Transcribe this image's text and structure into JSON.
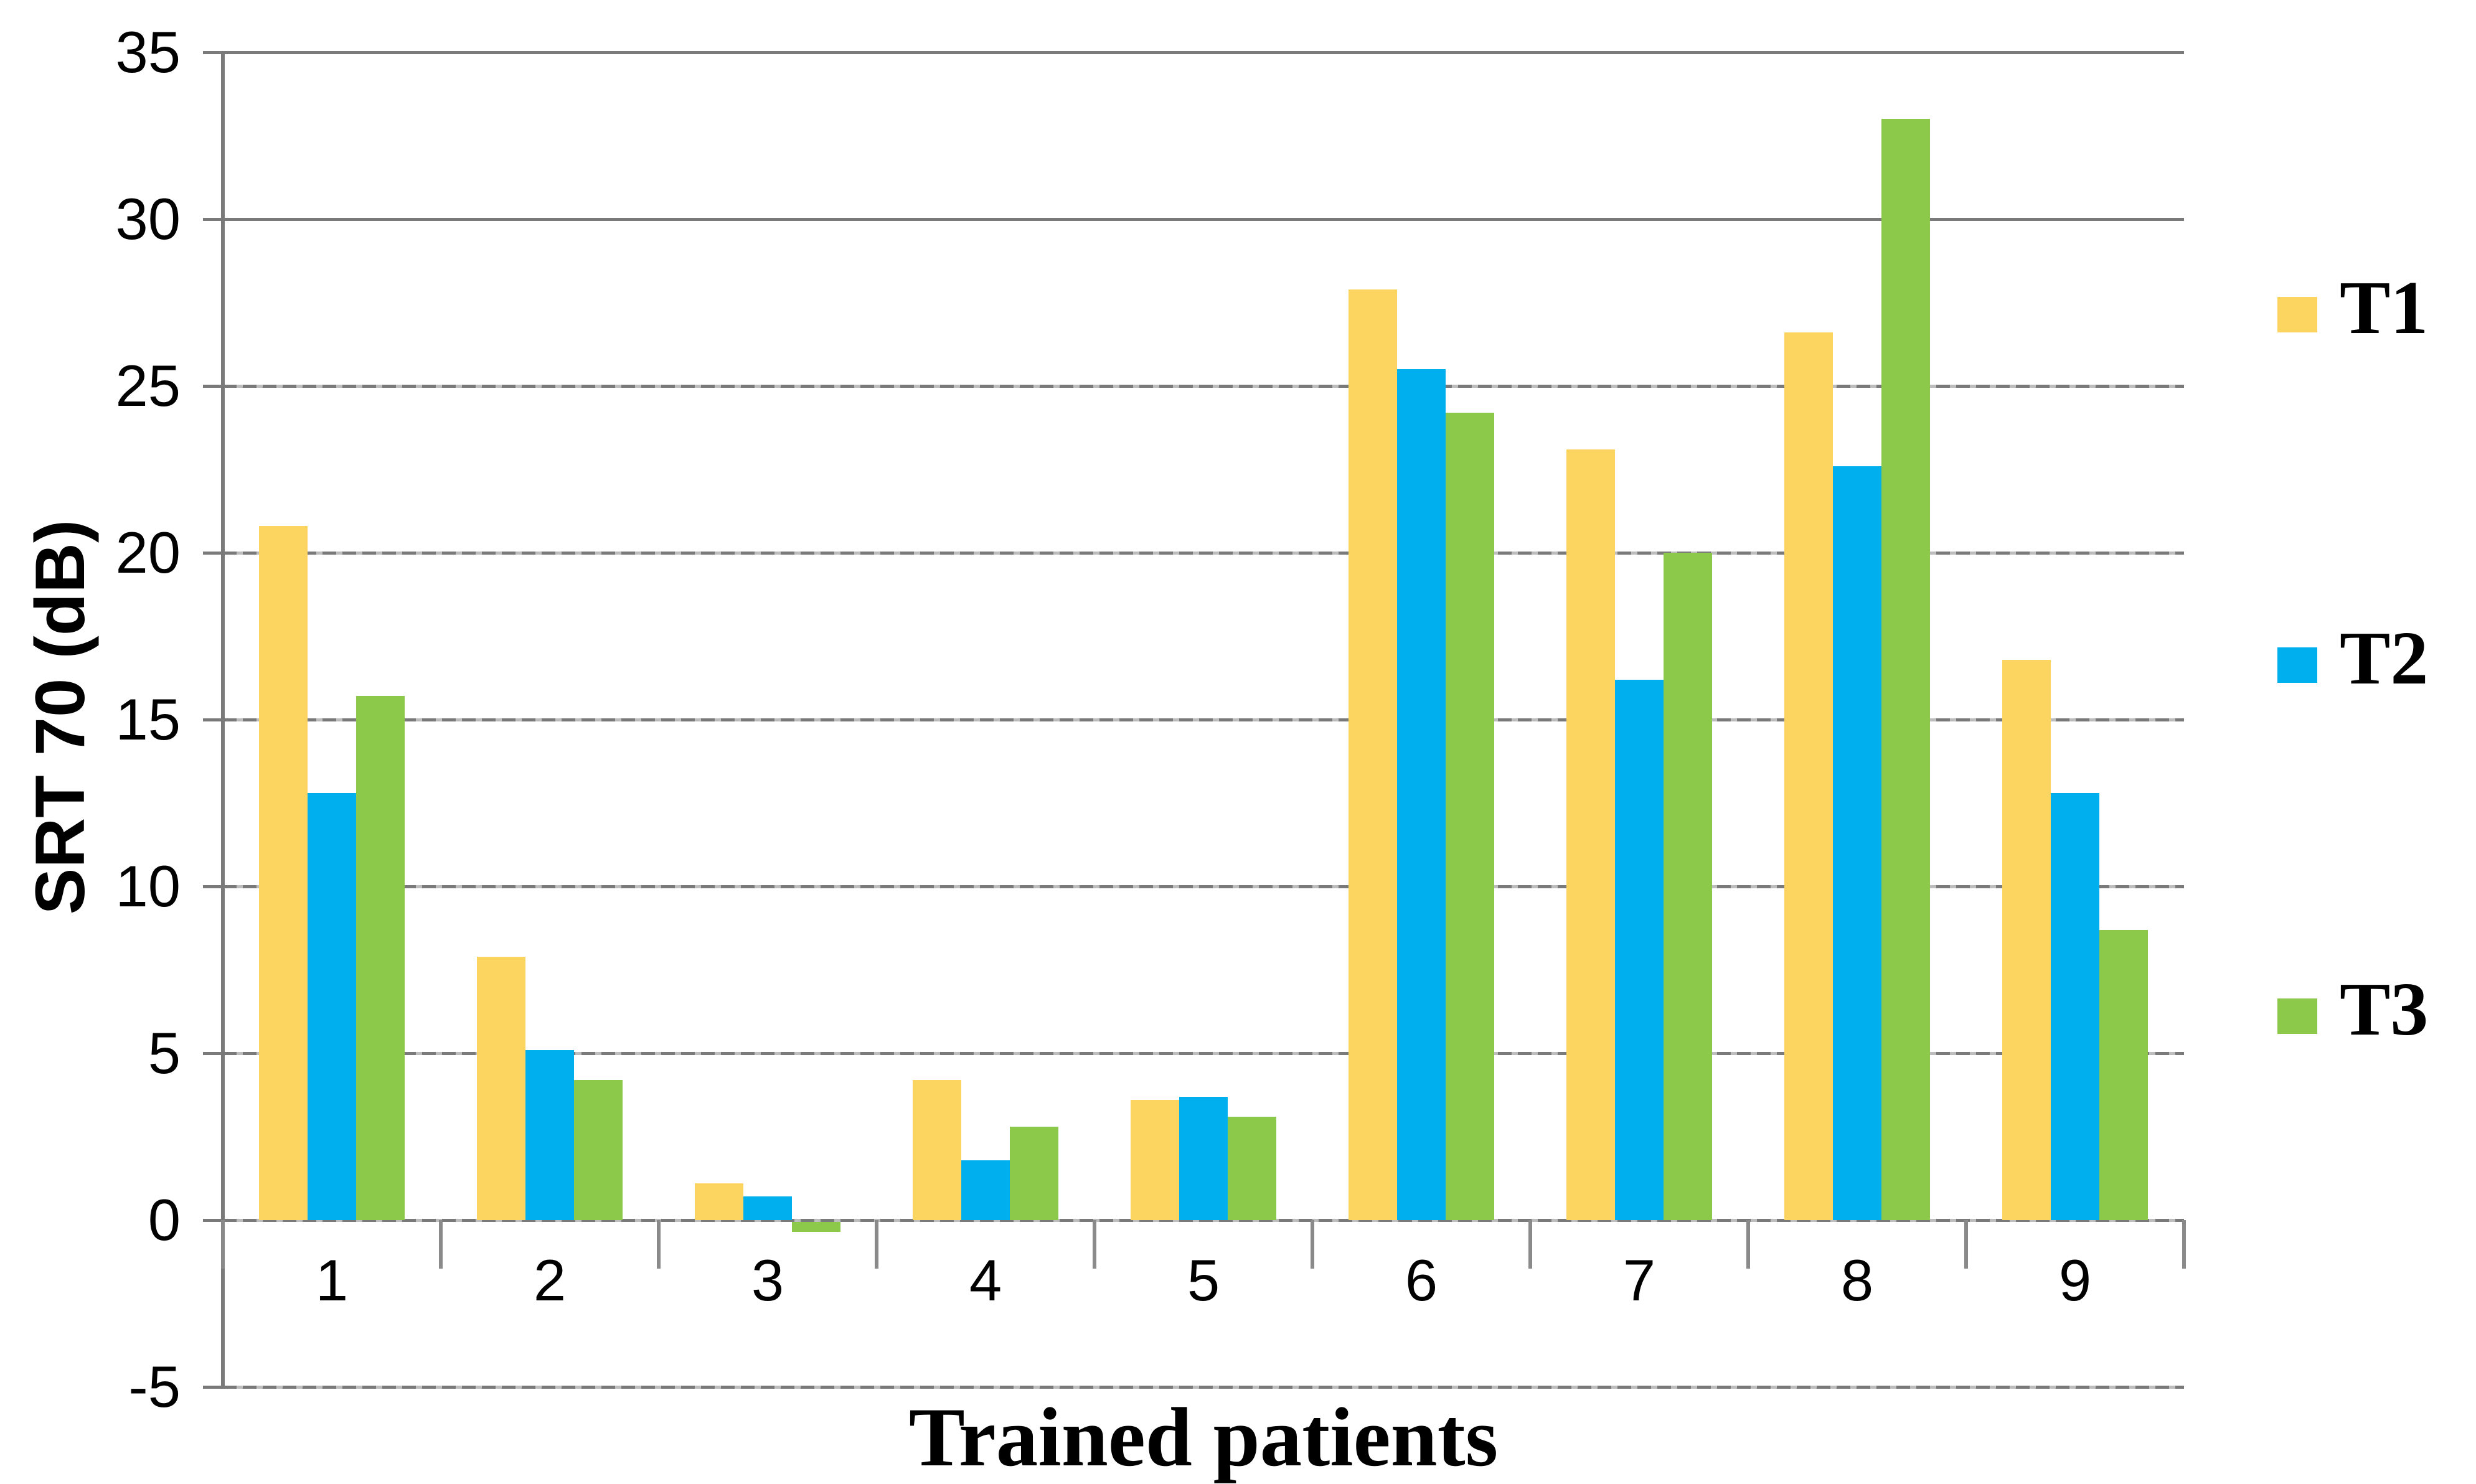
{
  "chart_data": {
    "type": "bar",
    "title": "",
    "categories": [
      "1",
      "2",
      "3",
      "4",
      "5",
      "6",
      "7",
      "8",
      "9"
    ],
    "series": [
      {
        "name": "T1",
        "color": "#FBD55F",
        "values": [
          20.8,
          7.9,
          1.1,
          4.2,
          3.6,
          27.9,
          23.1,
          26.6,
          16.8
        ]
      },
      {
        "name": "T2",
        "color": "#00B0EE",
        "values": [
          12.8,
          5.1,
          0.7,
          1.8,
          3.7,
          25.5,
          16.2,
          22.6,
          12.8
        ]
      },
      {
        "name": "T3",
        "color": "#8CC94A",
        "values": [
          15.7,
          4.2,
          -0.3,
          2.8,
          3.1,
          24.2,
          20,
          33,
          8.7
        ]
      }
    ],
    "xlabel": "Trained patients",
    "ylabel": "SRT 70 (dB)",
    "ylim": [
      -5,
      35
    ],
    "yticks": [
      35,
      30,
      25,
      20,
      15,
      10,
      5,
      0,
      -5
    ],
    "grid": true,
    "legend_position": "right",
    "legend_labels": [
      "T1",
      "T2",
      "T3"
    ]
  },
  "colors": {
    "background": "#FFFFFF",
    "grid": "#7A7A7A",
    "axis": "#7A7A7A",
    "text": "#000000"
  }
}
